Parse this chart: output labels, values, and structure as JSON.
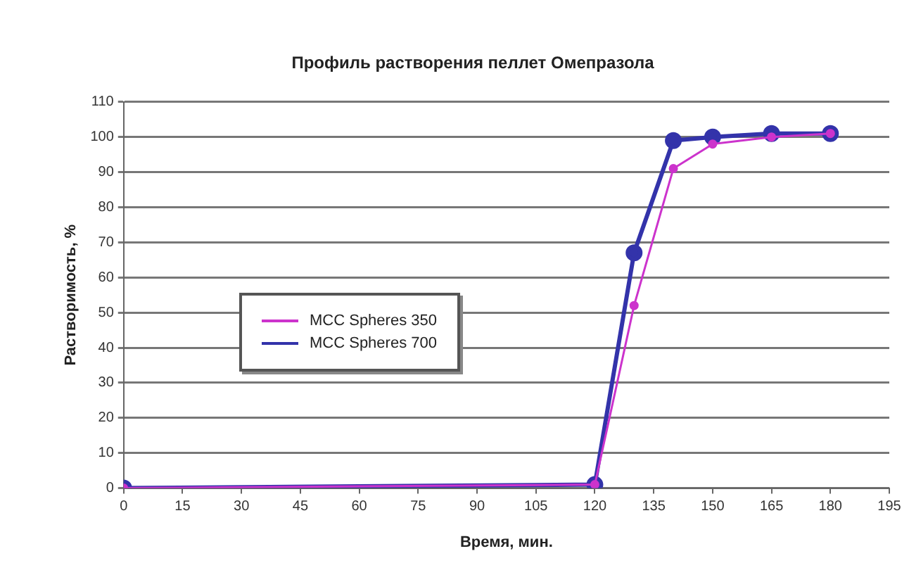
{
  "chart_data": {
    "type": "line",
    "title": "Профиль растворения пеллет Омепразола",
    "xlabel": "Время, мин.",
    "ylabel": "Растворимость, %",
    "x": [
      0,
      120,
      130,
      140,
      150,
      165,
      180
    ],
    "series": [
      {
        "name": "MCC Spheres 350",
        "color": "#cc33cc",
        "values": [
          0,
          1,
          52,
          91,
          98,
          100,
          101
        ]
      },
      {
        "name": "MCC Spheres 700",
        "color": "#3333aa",
        "values": [
          0,
          1,
          67,
          99,
          100,
          101,
          101
        ]
      }
    ],
    "xlim": [
      0,
      195
    ],
    "xticks": [
      0,
      15,
      30,
      45,
      60,
      75,
      90,
      105,
      120,
      135,
      150,
      165,
      180,
      195
    ],
    "ylim": [
      0,
      110
    ],
    "yticks": [
      0,
      10,
      20,
      30,
      40,
      50,
      60,
      70,
      80,
      90,
      100,
      110
    ],
    "grid": "y",
    "legend": "left",
    "marker": "circle",
    "line_style": "solid"
  }
}
